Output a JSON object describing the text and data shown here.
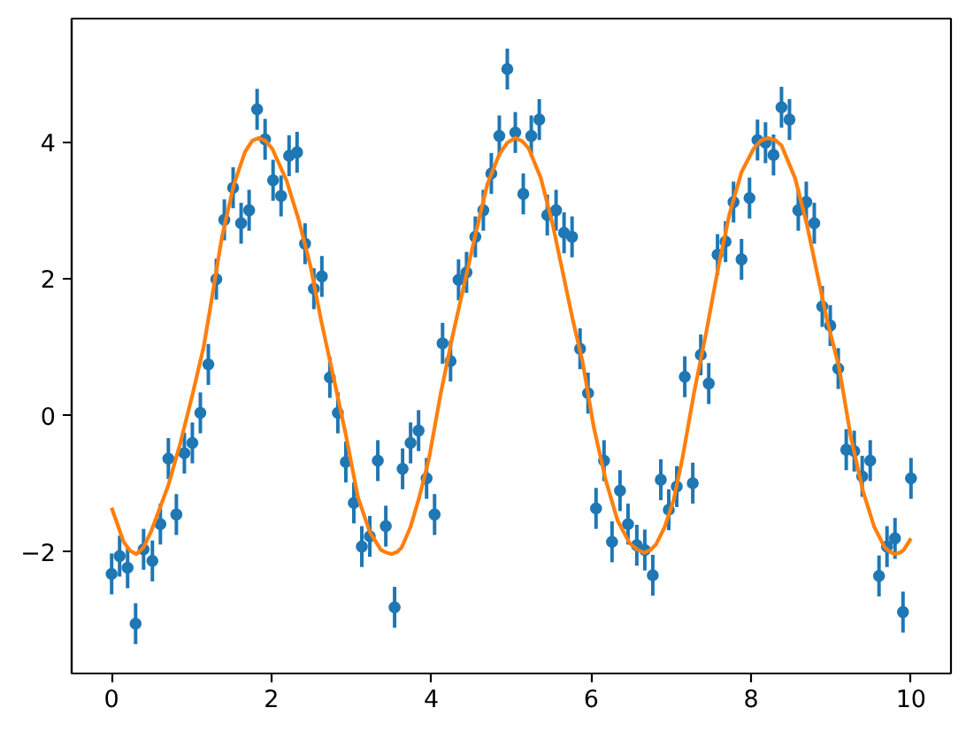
{
  "chart_data": {
    "type": "scatter",
    "xlim": [
      -0.5,
      10.5
    ],
    "ylim": [
      -3.78,
      5.82
    ],
    "xticks": [
      0,
      2,
      4,
      6,
      8,
      10
    ],
    "yticks": [
      {
        "value": -2,
        "label": "−2"
      },
      0,
      2,
      4
    ],
    "grid": false,
    "series": [
      {
        "color": "#1f77b4",
        "marker": "circle",
        "x": [
          0.0,
          0.1,
          0.2,
          0.3,
          0.4,
          0.51,
          0.61,
          0.71,
          0.81,
          0.91,
          1.01,
          1.11,
          1.21,
          1.31,
          1.41,
          1.52,
          1.62,
          1.72,
          1.82,
          1.92,
          2.02,
          2.12,
          2.22,
          2.32,
          2.42,
          2.53,
          2.63,
          2.73,
          2.83,
          2.93,
          3.03,
          3.13,
          3.23,
          3.33,
          3.43,
          3.54,
          3.64,
          3.74,
          3.84,
          3.94,
          4.04,
          4.14,
          4.24,
          4.34,
          4.44,
          4.55,
          4.65,
          4.75,
          4.85,
          4.95,
          5.05,
          5.15,
          5.25,
          5.35,
          5.45,
          5.56,
          5.66,
          5.76,
          5.86,
          5.96,
          6.06,
          6.16,
          6.26,
          6.36,
          6.46,
          6.57,
          6.67,
          6.77,
          6.87,
          6.97,
          7.07,
          7.17,
          7.27,
          7.37,
          7.47,
          7.58,
          7.68,
          7.78,
          7.88,
          7.98,
          8.08,
          8.18,
          8.28,
          8.38,
          8.48,
          8.59,
          8.69,
          8.79,
          8.89,
          8.99,
          9.09,
          9.19,
          9.29,
          9.39,
          9.49,
          9.6,
          9.7,
          9.8,
          9.9,
          10.0
        ],
        "values": [
          -2.32,
          -2.06,
          -2.23,
          -3.05,
          -1.96,
          -2.13,
          -1.59,
          -0.63,
          -1.45,
          -0.55,
          -0.4,
          0.04,
          0.75,
          2.0,
          2.87,
          3.34,
          2.82,
          3.01,
          4.49,
          4.05,
          3.45,
          3.22,
          3.81,
          3.86,
          2.52,
          1.86,
          2.04,
          0.56,
          0.04,
          -0.68,
          -1.28,
          -1.92,
          -1.77,
          -0.66,
          -1.62,
          -2.81,
          -0.78,
          -0.4,
          -0.22,
          -0.92,
          -1.45,
          1.06,
          0.8,
          1.99,
          2.1,
          2.62,
          3.01,
          3.55,
          4.1,
          5.08,
          4.15,
          3.25,
          4.1,
          4.34,
          2.94,
          3.01,
          2.68,
          2.62,
          0.98,
          0.33,
          -1.36,
          -0.66,
          -1.85,
          -1.1,
          -1.59,
          -1.9,
          -1.97,
          -2.34,
          -0.94,
          -1.38,
          -1.04,
          0.57,
          -0.99,
          0.89,
          0.47,
          2.36,
          2.55,
          3.13,
          2.29,
          3.19,
          4.04,
          4.0,
          3.82,
          4.52,
          4.34,
          3.01,
          3.13,
          2.82,
          1.6,
          1.32,
          0.69,
          -0.5,
          -0.52,
          -0.89,
          -0.66,
          -2.35,
          -1.92,
          -1.8,
          -2.88,
          -0.92
        ],
        "errors": [
          0.3,
          0.3,
          0.3,
          0.3,
          0.3,
          0.3,
          0.3,
          0.3,
          0.3,
          0.3,
          0.3,
          0.3,
          0.3,
          0.3,
          0.3,
          0.3,
          0.3,
          0.3,
          0.3,
          0.3,
          0.3,
          0.3,
          0.3,
          0.3,
          0.3,
          0.3,
          0.3,
          0.3,
          0.3,
          0.3,
          0.3,
          0.3,
          0.3,
          0.3,
          0.3,
          0.3,
          0.3,
          0.3,
          0.3,
          0.3,
          0.3,
          0.3,
          0.3,
          0.3,
          0.3,
          0.3,
          0.3,
          0.3,
          0.3,
          0.3,
          0.3,
          0.3,
          0.3,
          0.3,
          0.3,
          0.3,
          0.3,
          0.3,
          0.3,
          0.3,
          0.3,
          0.3,
          0.3,
          0.3,
          0.3,
          0.3,
          0.3,
          0.3,
          0.3,
          0.3,
          0.3,
          0.3,
          0.3,
          0.3,
          0.3,
          0.3,
          0.3,
          0.3,
          0.3,
          0.3,
          0.3,
          0.3,
          0.3,
          0.3,
          0.3,
          0.3,
          0.3,
          0.3,
          0.3,
          0.3,
          0.3,
          0.3,
          0.3,
          0.3,
          0.3,
          0.3,
          0.3,
          0.3,
          0.3,
          0.3
        ]
      },
      {
        "type": "line",
        "color": "#ff7f0e",
        "marker": "none",
        "line_style": "solid",
        "x": [
          0.0,
          0.15,
          0.23,
          0.31,
          0.4,
          0.49,
          0.71,
          0.86,
          1.01,
          1.15,
          1.23,
          1.38,
          1.53,
          1.67,
          1.76,
          1.84,
          1.92,
          2.01,
          2.19,
          2.34,
          2.49,
          2.62,
          2.78,
          2.93,
          3.08,
          3.23,
          3.37,
          3.44,
          3.5,
          3.57,
          3.63,
          3.74,
          3.85,
          3.97,
          4.11,
          4.26,
          4.41,
          4.56,
          4.7,
          4.85,
          4.95,
          5.05,
          5.14,
          5.22,
          5.37,
          5.52,
          5.66,
          5.77,
          5.89,
          6.03,
          6.18,
          6.33,
          6.48,
          6.57,
          6.66,
          6.74,
          6.81,
          6.92,
          7.03,
          7.14,
          7.29,
          7.44,
          7.59,
          7.73,
          7.88,
          8.03,
          8.12,
          8.21,
          8.3,
          8.38,
          8.55,
          8.7,
          8.84,
          8.95,
          9.1,
          9.25,
          9.4,
          9.54,
          9.67,
          9.74,
          9.8,
          9.86,
          9.91,
          10.0
        ],
        "values": [
          -1.35,
          -1.85,
          -1.98,
          -2.03,
          -1.93,
          -1.71,
          -1.02,
          -0.4,
          0.3,
          1.0,
          1.55,
          2.62,
          3.39,
          3.87,
          4.03,
          4.07,
          4.03,
          3.91,
          3.44,
          2.87,
          2.18,
          1.4,
          0.54,
          -0.28,
          -1.19,
          -1.71,
          -1.97,
          -2.01,
          -2.03,
          -2.0,
          -1.93,
          -1.63,
          -1.19,
          -0.63,
          0.28,
          1.14,
          1.92,
          2.7,
          3.39,
          3.83,
          4.0,
          4.07,
          4.02,
          3.91,
          3.48,
          2.79,
          2.01,
          1.4,
          0.8,
          -0.16,
          -0.94,
          -1.54,
          -1.87,
          -1.96,
          -2.01,
          -1.97,
          -1.89,
          -1.63,
          -1.24,
          -0.63,
          0.36,
          1.23,
          2.18,
          2.96,
          3.57,
          3.91,
          4.03,
          4.07,
          4.04,
          3.96,
          3.48,
          2.79,
          2.01,
          1.4,
          0.71,
          -0.33,
          -1.11,
          -1.63,
          -1.93,
          -2.0,
          -2.03,
          -2.01,
          -1.97,
          -1.8
        ]
      }
    ]
  }
}
